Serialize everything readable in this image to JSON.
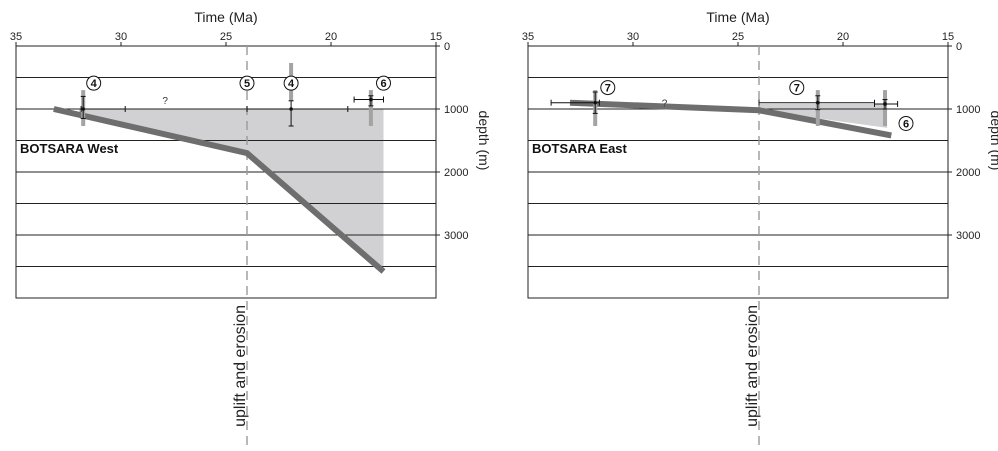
{
  "chart_data": [
    {
      "type": "line",
      "title": "",
      "panel_label": "BOTSARA West",
      "x_title": "Time (Ma)",
      "y_title": "depth (m)",
      "xlim": [
        35,
        15
      ],
      "ylim": [
        0,
        4000
      ],
      "x_ticks": [
        35,
        30,
        25,
        20,
        15
      ],
      "y_ticks": [
        0,
        1000,
        2000,
        3000
      ],
      "y_tick_labels": [
        "0",
        "1000",
        "2000",
        "3000"
      ],
      "gridlines_depth": [
        500,
        1000,
        1500,
        2000,
        2500,
        3000,
        3500
      ],
      "grid": true,
      "series": [
        {
          "color": "#6e6e6e",
          "points": [
            [
              33.2,
              1000
            ],
            [
              24,
              1700
            ],
            [
              17.5,
              3580
            ]
          ]
        }
      ],
      "shaded_region": {
        "color": "#d1d1d4",
        "points": [
          [
            32,
            1000
          ],
          [
            17.5,
            1000
          ],
          [
            17.5,
            3580
          ],
          [
            24,
            1700
          ],
          [
            32,
            1100
          ]
        ]
      },
      "event": {
        "time": 24,
        "label": "uplift and erosion",
        "circle": "5"
      },
      "question_marks": [
        {
          "text": "?",
          "time": 27.9,
          "depth": 860
        }
      ],
      "constraints": [
        {
          "circle": "4",
          "time": 31.8,
          "depth": 1000,
          "xerr": [
            31.9,
            29.8
          ],
          "yerr": [
            800,
            1150
          ],
          "bar": [
            700,
            1270
          ],
          "label_time": 31.3,
          "label_depth": 590
        },
        {
          "circle": "4",
          "time": 21.9,
          "depth": 1000,
          "xerr": [
            24,
            19.2
          ],
          "yerr": [
            870,
            1270
          ],
          "bar": [
            270,
            870
          ],
          "label_time": 21.9,
          "label_depth": 590
        },
        {
          "circle": "6",
          "time": 18.1,
          "depth": 850,
          "xerr": [
            18.9,
            17.5
          ],
          "yerr": [
            790,
            950
          ],
          "bar": [
            700,
            1270
          ],
          "label_time": 17.5,
          "label_depth": 590
        }
      ]
    },
    {
      "type": "line",
      "title": "",
      "panel_label": "BOTSARA East",
      "x_title": "Time (Ma)",
      "y_title": "depth (m)",
      "xlim": [
        35,
        15
      ],
      "ylim": [
        0,
        4000
      ],
      "x_ticks": [
        35,
        30,
        25,
        20,
        15
      ],
      "y_ticks": [
        0,
        1000,
        2000,
        3000
      ],
      "y_tick_labels": [
        "0",
        "1000",
        "2000",
        "3000"
      ],
      "gridlines_depth": [
        500,
        1000,
        1500,
        2000,
        2500,
        3000,
        3500
      ],
      "grid": true,
      "series": [
        {
          "color": "#6e6e6e",
          "points": [
            [
              33,
              900
            ],
            [
              24,
              1020
            ],
            [
              17.7,
              1420
            ]
          ]
        }
      ],
      "shaded_region": {
        "color": "#d1d1d4",
        "points": [
          [
            24,
            920
          ],
          [
            17.9,
            920
          ],
          [
            17.9,
            1300
          ],
          [
            24,
            1020
          ]
        ]
      },
      "event": {
        "time": 24,
        "label": "uplift and erosion",
        "circle": ""
      },
      "question_marks": [
        {
          "text": "?",
          "time": 28.5,
          "depth": 900
        }
      ],
      "constraints": [
        {
          "circle": "7",
          "time": 31.8,
          "depth": 900,
          "xerr": [
            33.9,
            31.6
          ],
          "yerr": [
            730,
            1070
          ],
          "bar": [
            700,
            1270
          ],
          "label_time": 31.2,
          "label_depth": 660
        },
        {
          "circle": "7",
          "time": 21.2,
          "depth": 900,
          "xerr": [
            24,
            18.5
          ],
          "yerr": [
            790,
            1010
          ],
          "bar": [
            700,
            1270
          ],
          "label_time": 22.2,
          "label_depth": 660
        },
        {
          "circle": "6",
          "time": 18.0,
          "depth": 920,
          "xerr": [
            18.5,
            17.4
          ],
          "yerr": [
            850,
            1000
          ],
          "bar": [
            700,
            1270
          ],
          "label_time": 17.0,
          "label_depth": 1230
        }
      ]
    }
  ]
}
